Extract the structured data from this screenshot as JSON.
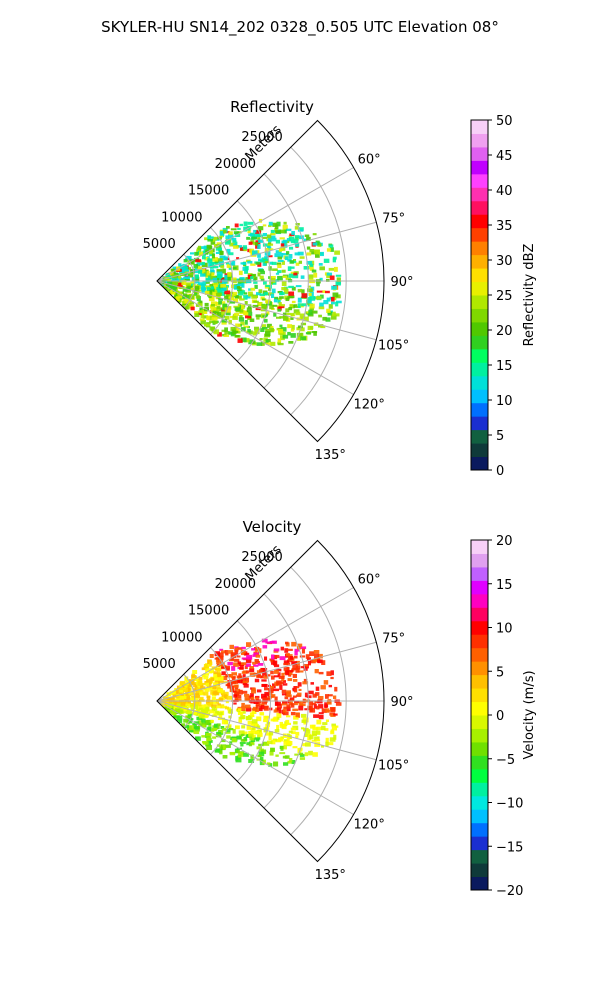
{
  "suptitle": "SKYLER-HU  SN14_202  0328_0.505 UTC Elevation 08°",
  "chart_data": [
    {
      "type": "heatmap",
      "title": "Reflectivity",
      "radial_axis_label": "Meters",
      "range_ticks": [
        5000,
        10000,
        15000,
        20000,
        25000
      ],
      "range_tick_labels": [
        "5000",
        "10000",
        "15000",
        "20000",
        "25000"
      ],
      "r_max": 30000,
      "azimuth_range": [
        45,
        135
      ],
      "azimuth_ticks": [
        60,
        75,
        90,
        105,
        120,
        135
      ],
      "azimuth_tick_labels": [
        "60°",
        "75°",
        "90°",
        "105°",
        "120°",
        "135°"
      ],
      "grid": true,
      "colorbar": {
        "label": "Reflectivity dBZ",
        "min": 0,
        "max": 50,
        "ticks": [
          0,
          5,
          10,
          15,
          20,
          25,
          30,
          35,
          40,
          45,
          50
        ],
        "tick_labels": [
          "0",
          "5",
          "10",
          "15",
          "20",
          "25",
          "30",
          "35",
          "40",
          "45",
          "50"
        ],
        "colors": [
          "#0a1a5e",
          "#0f3a3a",
          "#116040",
          "#1a2fd1",
          "#0070ff",
          "#00c0ff",
          "#00e0d8",
          "#00f0a0",
          "#00ff60",
          "#30d020",
          "#50c800",
          "#80d800",
          "#b0e800",
          "#e8f000",
          "#ffe000",
          "#ffb000",
          "#ff8000",
          "#ff4000",
          "#ff0000",
          "#ff1060",
          "#ff30b0",
          "#ff40ff",
          "#c000ff",
          "#e060f0",
          "#f0a0f0",
          "#f8d0f8"
        ]
      }
    },
    {
      "type": "heatmap",
      "title": "Velocity",
      "radial_axis_label": "Meters",
      "range_ticks": [
        5000,
        10000,
        15000,
        20000,
        25000
      ],
      "range_tick_labels": [
        "5000",
        "10000",
        "15000",
        "20000",
        "25000"
      ],
      "r_max": 30000,
      "azimuth_range": [
        45,
        135
      ],
      "azimuth_ticks": [
        60,
        75,
        90,
        105,
        120,
        135
      ],
      "azimuth_tick_labels": [
        "60°",
        "75°",
        "90°",
        "105°",
        "120°",
        "135°"
      ],
      "grid": true,
      "colorbar": {
        "label": "Velocity (m/s)",
        "min": -20,
        "max": 20,
        "ticks": [
          -20,
          -15,
          -10,
          -5,
          0,
          5,
          10,
          15,
          20
        ],
        "tick_labels": [
          "−20",
          "−15",
          "−10",
          "−5",
          "0",
          "5",
          "10",
          "15",
          "20"
        ],
        "colors": [
          "#0a1a5e",
          "#0f3a3a",
          "#116040",
          "#1a2fd1",
          "#0070ff",
          "#00c0ff",
          "#00e8e0",
          "#00f0a0",
          "#00ff40",
          "#30e020",
          "#70e000",
          "#a8f000",
          "#d8f800",
          "#ffff00",
          "#ffe000",
          "#ffc000",
          "#ff9000",
          "#ff6000",
          "#ff3000",
          "#ff0000",
          "#ff0060",
          "#ff00c0",
          "#e000ff",
          "#c060ff",
          "#e0a0f0",
          "#f8d0f8"
        ]
      }
    }
  ]
}
